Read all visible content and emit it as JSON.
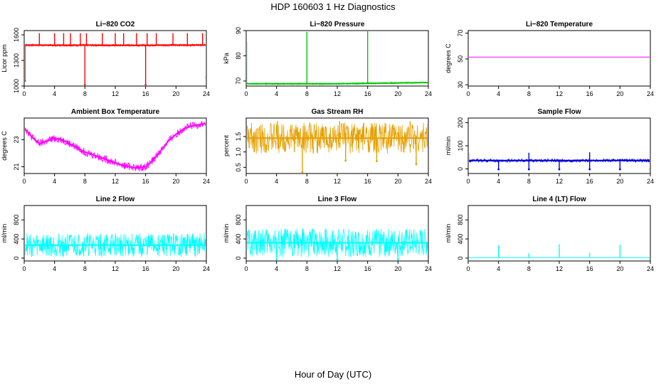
{
  "figure": {
    "title": "HDP  160603  1 Hz Diagnostics",
    "xlabel": "Hour of Day (UTC)"
  },
  "chart_data": [
    {
      "type": "line",
      "title": "Li−820 CO2",
      "ylabel": "Licor ppm",
      "color": "#ff0000",
      "xlim": [
        0,
        24
      ],
      "xticks": [
        0,
        4,
        8,
        12,
        16,
        20,
        24
      ],
      "ylim": [
        1000,
        1650
      ],
      "yticks": [
        1000,
        1300,
        1600
      ],
      "ytick_labels": [
        "1000",
        "1300",
        "1600"
      ],
      "baseline": [
        [
          0,
          1480
        ],
        [
          4,
          1478
        ],
        [
          8,
          1479
        ],
        [
          12,
          1477
        ],
        [
          16,
          1478
        ],
        [
          20,
          1480
        ],
        [
          24,
          1480
        ]
      ],
      "band": 12,
      "spikes": [
        [
          2,
          1620
        ],
        [
          4,
          1620
        ],
        [
          5.2,
          1620
        ],
        [
          6.1,
          1620
        ],
        [
          7.4,
          1620
        ],
        [
          8.2,
          1620
        ],
        [
          10.3,
          1620
        ],
        [
          12,
          1620
        ],
        [
          13.1,
          1620
        ],
        [
          14.8,
          1620
        ],
        [
          16.2,
          1620
        ],
        [
          17.4,
          1620
        ],
        [
          19.6,
          1620
        ],
        [
          21.5,
          1620
        ],
        [
          23.5,
          1620
        ]
      ],
      "dips": [
        [
          0.1,
          1060
        ],
        [
          8,
          1010
        ],
        [
          16,
          1010
        ],
        [
          24,
          1100
        ]
      ]
    },
    {
      "type": "line",
      "title": "Li−820 Pressure",
      "ylabel": "kPa",
      "color": "#00c800",
      "xlim": [
        0,
        24
      ],
      "xticks": [
        0,
        4,
        8,
        12,
        16,
        20,
        24
      ],
      "ylim": [
        68,
        90
      ],
      "yticks": [
        70,
        80,
        90
      ],
      "ytick_labels": [
        "70",
        "80",
        "90"
      ],
      "baseline": [
        [
          0,
          68.9
        ],
        [
          12,
          68.9
        ],
        [
          24,
          69.4
        ]
      ],
      "band": 0.3,
      "spikes": [
        [
          0.05,
          85.5
        ],
        [
          8,
          89.5
        ],
        [
          16,
          89.7
        ],
        [
          24,
          89.5
        ]
      ],
      "dips": []
    },
    {
      "type": "line",
      "title": "Li−820 Temperature",
      "ylabel": "degrees C",
      "color": "#ff00ff",
      "xlim": [
        0,
        24
      ],
      "xticks": [
        0,
        4,
        8,
        12,
        16,
        20,
        24
      ],
      "ylim": [
        29,
        72
      ],
      "yticks": [
        30,
        50,
        70
      ],
      "ytick_labels": [
        "30",
        "50",
        "70"
      ],
      "baseline": [
        [
          0,
          51.5
        ],
        [
          24,
          51.5
        ]
      ],
      "band": 0,
      "spikes": [],
      "dips": []
    },
    {
      "type": "line",
      "title": "Ambient Box Temperature",
      "ylabel": "degrees C",
      "color": "#ff00ff",
      "xlim": [
        0,
        24
      ],
      "xticks": [
        0,
        4,
        8,
        12,
        16,
        20,
        24
      ],
      "ylim": [
        20.5,
        24.6
      ],
      "yticks": [
        21,
        23
      ],
      "ytick_labels": [
        "21",
        "23"
      ],
      "baseline": [
        [
          0,
          23.9
        ],
        [
          1,
          23.2
        ],
        [
          2,
          22.7
        ],
        [
          3,
          22.9
        ],
        [
          4,
          23.1
        ],
        [
          5,
          23.0
        ],
        [
          6,
          22.7
        ],
        [
          7,
          22.4
        ],
        [
          8,
          22.1
        ],
        [
          9,
          21.9
        ],
        [
          10,
          21.7
        ],
        [
          11,
          21.5
        ],
        [
          12,
          21.3
        ],
        [
          13,
          21.1
        ],
        [
          14,
          21.0
        ],
        [
          15,
          20.9
        ],
        [
          16,
          21.0
        ],
        [
          17,
          21.5
        ],
        [
          18,
          22.2
        ],
        [
          19,
          22.9
        ],
        [
          20,
          23.4
        ],
        [
          21,
          23.8
        ],
        [
          22,
          24.0
        ],
        [
          23,
          24.1
        ],
        [
          24,
          24.2
        ]
      ],
      "band": 0.28,
      "spikes": [],
      "dips": []
    },
    {
      "type": "line",
      "title": "Gas Stream RH",
      "ylabel": "percent",
      "color": "#e6a000",
      "xlim": [
        0,
        24
      ],
      "xticks": [
        0,
        4,
        8,
        12,
        16,
        20,
        24
      ],
      "ylim": [
        0.3,
        2.1
      ],
      "yticks": [
        0.5,
        1.0,
        1.5
      ],
      "ytick_labels": [
        "0.5",
        "1.0",
        "1.5"
      ],
      "baseline": [
        [
          0,
          1.45
        ],
        [
          24,
          1.45
        ]
      ],
      "band": 0.5,
      "spikes": [
        [
          4.1,
          2.0
        ],
        [
          12.3,
          2.0
        ],
        [
          21.6,
          2.0
        ]
      ],
      "dips": [
        [
          7.4,
          0.35
        ],
        [
          13.1,
          0.72
        ],
        [
          17.2,
          0.7
        ],
        [
          22.4,
          0.6
        ]
      ]
    },
    {
      "type": "line",
      "title": "Sample Flow",
      "ylabel": "ml/min",
      "color": "#0000dc",
      "xlim": [
        0,
        24
      ],
      "xticks": [
        0,
        4,
        8,
        12,
        16,
        20,
        24
      ],
      "ylim": [
        -20,
        220
      ],
      "yticks": [
        0,
        100,
        200
      ],
      "ytick_labels": [
        "0",
        "100",
        "200"
      ],
      "baseline": [
        [
          0,
          36
        ],
        [
          24,
          36
        ]
      ],
      "band": 7,
      "spikes": [
        [
          0.05,
          70
        ],
        [
          8,
          70
        ],
        [
          16,
          72
        ]
      ],
      "dips": [
        [
          4,
          -2
        ],
        [
          8,
          -2
        ],
        [
          12,
          -2
        ],
        [
          16,
          -2
        ],
        [
          20,
          -2
        ],
        [
          24,
          -2
        ]
      ]
    },
    {
      "type": "line",
      "title": "Line 2 Flow",
      "ylabel": "ml/min",
      "color": "#00ffff",
      "xlim": [
        0,
        24
      ],
      "xticks": [
        0,
        4,
        8,
        12,
        16,
        20,
        24
      ],
      "ylim": [
        -60,
        1100
      ],
      "yticks": [
        0,
        400,
        800
      ],
      "ytick_labels": [
        "0",
        "400",
        "800"
      ],
      "baseline": [
        [
          0,
          270
        ],
        [
          24,
          270
        ]
      ],
      "band": 250,
      "spikes": [],
      "dips": []
    },
    {
      "type": "line",
      "title": "Line 3 Flow",
      "ylabel": "ml/min",
      "color": "#00ffff",
      "xlim": [
        0,
        24
      ],
      "xticks": [
        0,
        4,
        8,
        12,
        16,
        20,
        24
      ],
      "ylim": [
        -60,
        1100
      ],
      "yticks": [
        0,
        400,
        800
      ],
      "ytick_labels": [
        "0",
        "400",
        "800"
      ],
      "baseline": [
        [
          0,
          320
        ],
        [
          24,
          320
        ]
      ],
      "band": 300,
      "spikes": [],
      "dips": [
        [
          4,
          -40
        ],
        [
          12,
          -30
        ],
        [
          20,
          -30
        ]
      ]
    },
    {
      "type": "line",
      "title": "Line 4 (LT) Flow",
      "ylabel": "ml/min",
      "color": "#00ffff",
      "xlim": [
        0,
        24
      ],
      "xticks": [
        0,
        4,
        8,
        12,
        16,
        20,
        24
      ],
      "ylim": [
        -60,
        1100
      ],
      "yticks": [
        0,
        400,
        800
      ],
      "ytick_labels": [
        "0",
        "400",
        "800"
      ],
      "baseline": [
        [
          0,
          10
        ],
        [
          24,
          10
        ]
      ],
      "band": 0,
      "spikes": [
        [
          4,
          270
        ],
        [
          8,
          100
        ],
        [
          12,
          290
        ],
        [
          16,
          110
        ],
        [
          20,
          280
        ],
        [
          24,
          100
        ]
      ],
      "dips": []
    }
  ]
}
